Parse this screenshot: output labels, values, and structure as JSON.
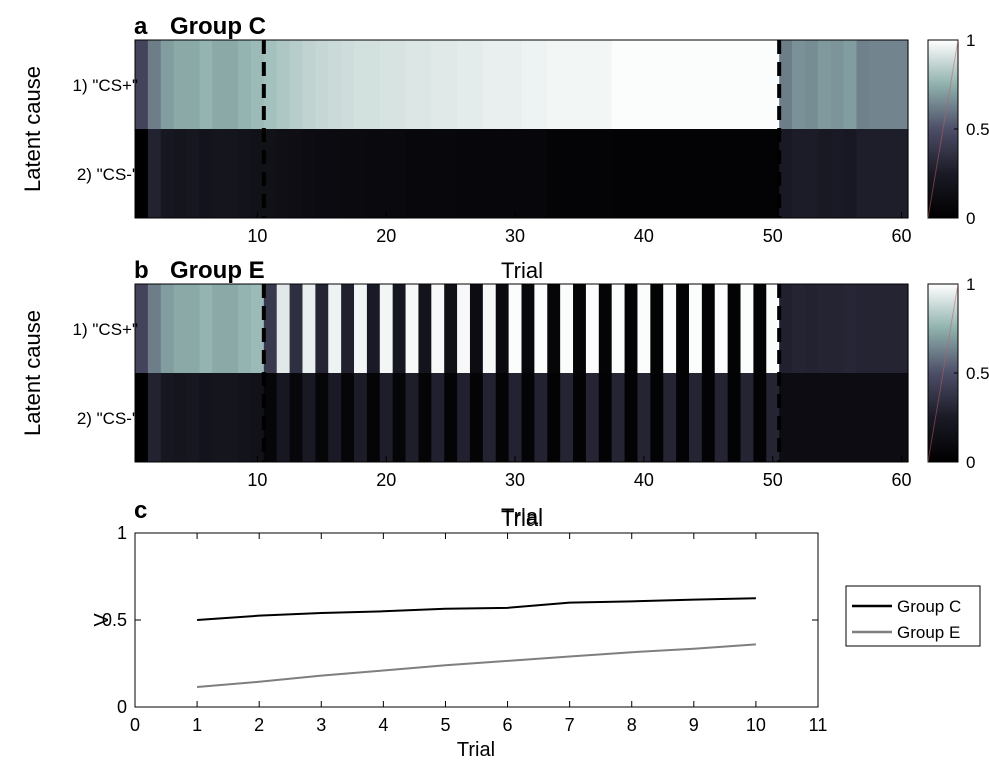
{
  "chart_data": [
    {
      "panel_letter": "a",
      "title": "Group C",
      "type": "heatmap",
      "xlabel": "Trial",
      "ylabel": "Latent cause",
      "row_labels": [
        "1) \"CS+\"",
        "2) \"CS-\""
      ],
      "x_ticks": [
        10,
        20,
        30,
        40,
        50,
        60
      ],
      "xlim": [
        0.5,
        60.5
      ],
      "colorbar": {
        "ticks": [
          0,
          0.5,
          1
        ],
        "range": [
          0,
          1
        ]
      },
      "dashed_lines_at": [
        10.5,
        50.5
      ],
      "values": [
        [
          0.45,
          0.62,
          0.7,
          0.73,
          0.73,
          0.76,
          0.73,
          0.73,
          0.76,
          0.78,
          0.8,
          0.82,
          0.84,
          0.86,
          0.87,
          0.88,
          0.89,
          0.9,
          0.9,
          0.91,
          0.91,
          0.92,
          0.92,
          0.93,
          0.93,
          0.94,
          0.94,
          0.95,
          0.95,
          0.95,
          0.96,
          0.96,
          0.97,
          0.97,
          0.97,
          0.97,
          0.97,
          0.99,
          0.99,
          0.99,
          0.99,
          0.99,
          0.99,
          0.99,
          0.99,
          0.99,
          0.99,
          0.99,
          0.99,
          0.99,
          0.62,
          0.67,
          0.66,
          0.69,
          0.68,
          0.7,
          0.63,
          0.64,
          0.64,
          0.64
        ],
        [
          0.0,
          0.29,
          0.22,
          0.2,
          0.22,
          0.18,
          0.2,
          0.2,
          0.18,
          0.16,
          0.16,
          0.14,
          0.13,
          0.12,
          0.11,
          0.11,
          0.1,
          0.1,
          0.09,
          0.09,
          0.09,
          0.08,
          0.08,
          0.08,
          0.08,
          0.07,
          0.07,
          0.07,
          0.07,
          0.07,
          0.07,
          0.07,
          0.04,
          0.04,
          0.04,
          0.04,
          0.04,
          0.03,
          0.03,
          0.03,
          0.03,
          0.03,
          0.03,
          0.03,
          0.03,
          0.03,
          0.03,
          0.03,
          0.03,
          0.03,
          0.24,
          0.26,
          0.26,
          0.24,
          0.25,
          0.23,
          0.27,
          0.27,
          0.27,
          0.27
        ]
      ]
    },
    {
      "panel_letter": "b",
      "title": "Group E",
      "type": "heatmap",
      "xlabel": "Trial",
      "ylabel": "Latent cause",
      "row_labels": [
        "1) \"CS+\"",
        "2) \"CS-\""
      ],
      "x_ticks": [
        10,
        20,
        30,
        40,
        50,
        60
      ],
      "xlim": [
        0.5,
        60.5
      ],
      "colorbar": {
        "ticks": [
          0,
          0.5,
          1
        ],
        "range": [
          0,
          1
        ]
      },
      "dashed_lines_at": [
        10.5,
        50.5
      ],
      "values": [
        [
          0.45,
          0.62,
          0.7,
          0.73,
          0.73,
          0.76,
          0.73,
          0.73,
          0.76,
          0.78,
          0.4,
          0.93,
          0.35,
          0.95,
          0.3,
          0.96,
          0.28,
          0.97,
          0.25,
          0.97,
          0.22,
          0.98,
          0.18,
          0.98,
          0.15,
          0.98,
          0.12,
          0.98,
          0.1,
          0.99,
          0.08,
          0.99,
          0.06,
          0.99,
          0.05,
          0.99,
          0.04,
          0.99,
          0.04,
          0.99,
          0.03,
          0.99,
          0.03,
          0.99,
          0.03,
          0.99,
          0.03,
          0.99,
          0.03,
          0.99,
          0.28,
          0.3,
          0.29,
          0.3,
          0.3,
          0.31,
          0.3,
          0.3,
          0.3,
          0.3
        ],
        [
          0.0,
          0.29,
          0.22,
          0.2,
          0.22,
          0.18,
          0.2,
          0.2,
          0.18,
          0.16,
          0.06,
          0.22,
          0.07,
          0.24,
          0.06,
          0.25,
          0.06,
          0.26,
          0.05,
          0.27,
          0.05,
          0.27,
          0.05,
          0.28,
          0.04,
          0.28,
          0.04,
          0.29,
          0.04,
          0.29,
          0.04,
          0.29,
          0.03,
          0.3,
          0.03,
          0.3,
          0.03,
          0.3,
          0.03,
          0.3,
          0.03,
          0.3,
          0.03,
          0.3,
          0.03,
          0.3,
          0.03,
          0.3,
          0.03,
          0.3,
          0.12,
          0.12,
          0.12,
          0.12,
          0.12,
          0.12,
          0.12,
          0.12,
          0.12,
          0.12
        ]
      ]
    },
    {
      "panel_letter": "c",
      "title": "Trial",
      "type": "line",
      "xlabel": "Trial",
      "ylabel": "V",
      "xlim": [
        0,
        11
      ],
      "ylim": [
        0,
        1
      ],
      "x_ticks": [
        0,
        1,
        2,
        3,
        4,
        5,
        6,
        7,
        8,
        9,
        10,
        11
      ],
      "y_ticks": [
        0,
        0.5,
        1
      ],
      "x": [
        1,
        2,
        3,
        4,
        5,
        6,
        7,
        8,
        9,
        10
      ],
      "legend_position": "right",
      "series": [
        {
          "name": "Group C",
          "color": "#000000",
          "values": [
            0.5,
            0.525,
            0.54,
            0.55,
            0.565,
            0.57,
            0.6,
            0.607,
            0.617,
            0.625
          ]
        },
        {
          "name": "Group E",
          "color": "#7f7f7f",
          "values": [
            0.115,
            0.145,
            0.18,
            0.21,
            0.24,
            0.265,
            0.29,
            0.315,
            0.335,
            0.36
          ]
        }
      ]
    }
  ]
}
